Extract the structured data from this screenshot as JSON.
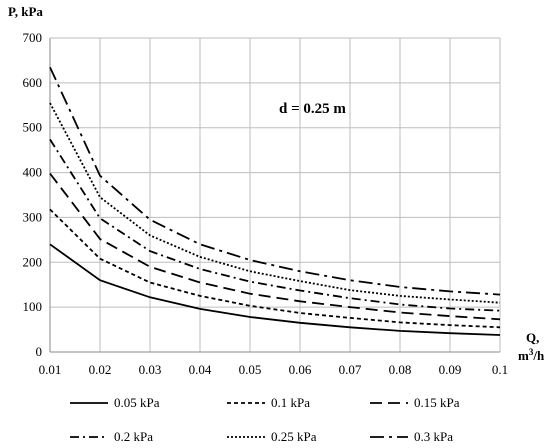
{
  "chart_data": {
    "type": "line",
    "ylabel": "P, kPa",
    "xlabel_line1": "Q,",
    "xlabel_line2_base": "m",
    "xlabel_line2_sup": "3",
    "xlabel_line2_rest": "/h",
    "annotation": "d = 0.25 m",
    "xlim": [
      0.01,
      0.1
    ],
    "ylim": [
      0,
      700
    ],
    "x_ticks": [
      "0.01",
      "0.02",
      "0.03",
      "0.04",
      "0.05",
      "0.06",
      "0.07",
      "0.08",
      "0.09",
      "0.1"
    ],
    "y_ticks": [
      "0",
      "100",
      "200",
      "300",
      "400",
      "500",
      "600",
      "700"
    ],
    "grid": true,
    "legend_position": "bottom",
    "x": [
      0.01,
      0.02,
      0.03,
      0.04,
      0.05,
      0.06,
      0.07,
      0.08,
      0.09,
      0.1
    ],
    "series": [
      {
        "name": "0.05 kPa",
        "dash": "solid",
        "values": [
          240,
          160,
          122,
          96,
          78,
          65,
          55,
          47,
          42,
          38
        ]
      },
      {
        "name": "0.1 kPa",
        "dash": "short-dash",
        "values": [
          318,
          208,
          155,
          125,
          103,
          87,
          76,
          66,
          60,
          55
        ]
      },
      {
        "name": "0.15 kPa",
        "dash": "long-dash",
        "values": [
          398,
          252,
          190,
          155,
          130,
          113,
          100,
          88,
          80,
          73
        ]
      },
      {
        "name": "0.2 kPa",
        "dash": "dash-dot",
        "values": [
          474,
          298,
          225,
          185,
          157,
          137,
          120,
          106,
          97,
          92
        ]
      },
      {
        "name": "0.25 kPa",
        "dash": "dotted",
        "values": [
          555,
          345,
          260,
          212,
          180,
          158,
          138,
          125,
          117,
          110
        ]
      },
      {
        "name": "0.3 kPa",
        "dash": "long-dash-dot",
        "values": [
          635,
          393,
          295,
          240,
          205,
          180,
          160,
          145,
          135,
          128
        ]
      }
    ]
  }
}
